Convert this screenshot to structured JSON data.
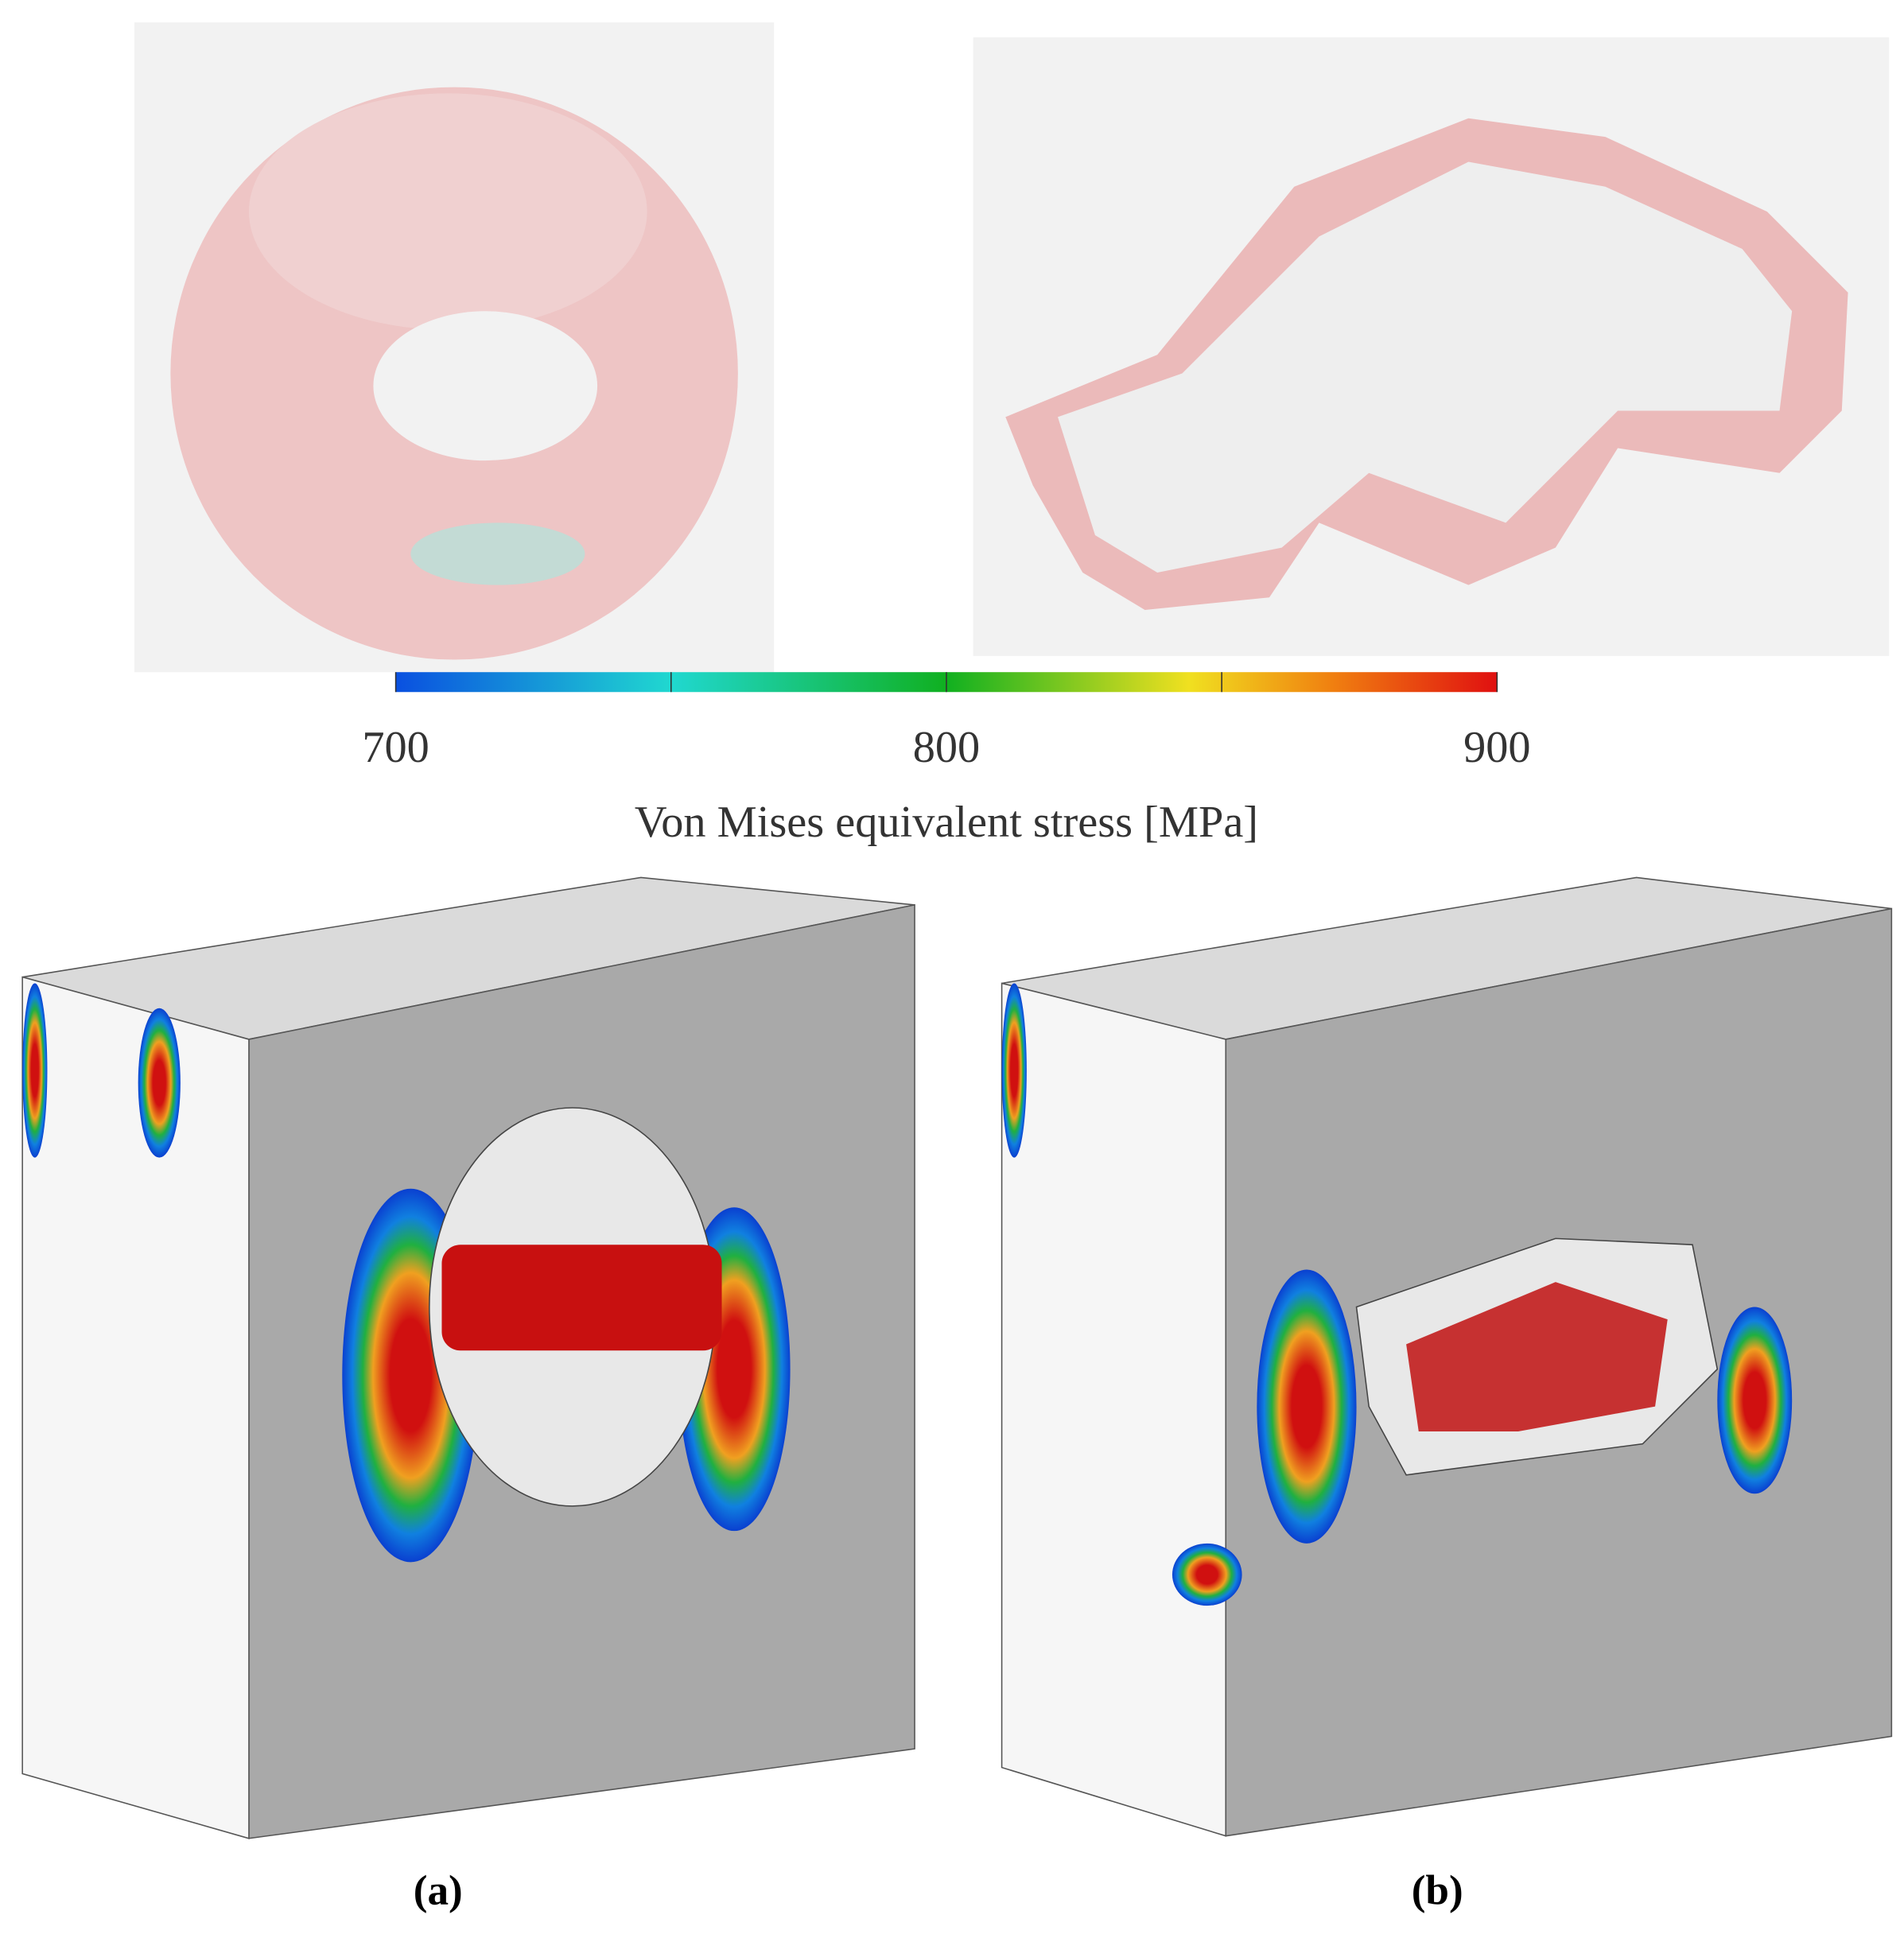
{
  "colorbar": {
    "range": [
      700,
      900
    ],
    "ticks": [
      700,
      800,
      900
    ],
    "minor_ticks": [
      750,
      850
    ],
    "label": "Von Mises equivalent stress [MPa]"
  },
  "panels": [
    {
      "label": "(a)"
    },
    {
      "label": "(b)"
    }
  ]
}
